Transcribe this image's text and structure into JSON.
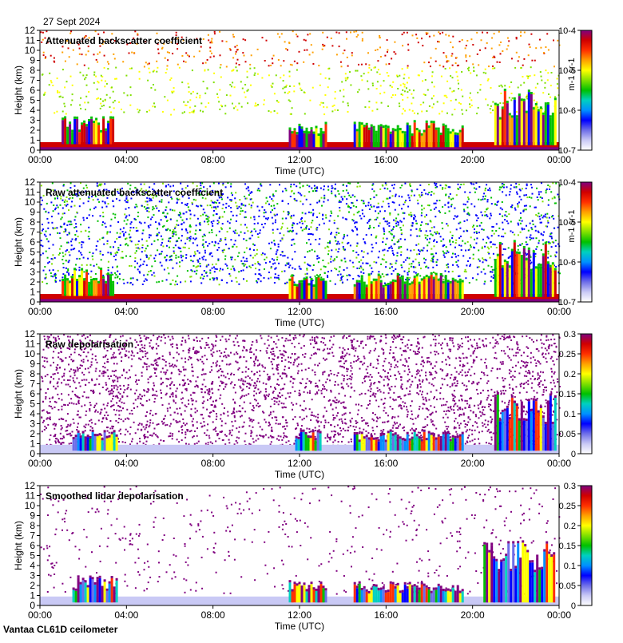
{
  "date_label": "27 Sept 2024",
  "station_label": "Vantaa CL61D ceilometer",
  "x_ticks": [
    "00:00",
    "04:00",
    "08:00",
    "12:00",
    "16:00",
    "20:00",
    "00:00"
  ],
  "y_ticks": [
    "0",
    "1",
    "2",
    "3",
    "4",
    "5",
    "6",
    "7",
    "8",
    "9",
    "10",
    "11",
    "12"
  ],
  "colors": {
    "ramp": [
      "#ffffff",
      "#c9c9f5",
      "#6e6ee8",
      "#0000ff",
      "#0090ff",
      "#00d0c0",
      "#00c000",
      "#80e000",
      "#ffff00",
      "#ffa000",
      "#ff3000",
      "#d00000",
      "#800080"
    ]
  },
  "chart_data": [
    {
      "type": "heatmap",
      "title": "Attenuated backscatter coefficient",
      "xlabel": "Time (UTC)",
      "ylabel": "Height (km)",
      "xlim": [
        0,
        24
      ],
      "ylim": [
        0,
        12
      ],
      "colorbar": {
        "scale": "log",
        "ticks": [
          "10-4",
          "10-5",
          "10-6",
          "10-7"
        ],
        "label": "m-1 sr-1"
      },
      "features": [
        {
          "t0": 1.0,
          "t1": 3.4,
          "h0": 0.6,
          "h1": 3.2,
          "kind": "cloud"
        },
        {
          "t0": 11.5,
          "t1": 13.2,
          "h0": 0.3,
          "h1": 2.6,
          "kind": "cloud"
        },
        {
          "t0": 14.5,
          "t1": 19.5,
          "h0": 0.3,
          "h1": 2.8,
          "kind": "cloud"
        },
        {
          "t0": 21.0,
          "t1": 23.8,
          "h0": 0.5,
          "h1": 6.0,
          "kind": "cloud"
        }
      ]
    },
    {
      "type": "heatmap",
      "title": "Raw attenuated backscatter coefficient",
      "xlabel": "Time (UTC)",
      "ylabel": "Height (km)",
      "xlim": [
        0,
        24
      ],
      "ylim": [
        0,
        12
      ],
      "colorbar": {
        "scale": "log",
        "ticks": [
          "10-4",
          "10-5",
          "10-6",
          "10-7"
        ],
        "label": "m-1 sr-1"
      },
      "features": [
        {
          "t0": 1.0,
          "t1": 3.4,
          "h0": 0.6,
          "h1": 3.2,
          "kind": "cloud"
        },
        {
          "t0": 11.5,
          "t1": 13.2,
          "h0": 0.3,
          "h1": 2.6,
          "kind": "cloud"
        },
        {
          "t0": 14.5,
          "t1": 19.5,
          "h0": 0.3,
          "h1": 2.8,
          "kind": "cloud"
        },
        {
          "t0": 21.0,
          "t1": 23.8,
          "h0": 0.5,
          "h1": 6.0,
          "kind": "cloud"
        }
      ]
    },
    {
      "type": "heatmap",
      "title": "Raw depolarisation",
      "xlabel": "Time (UTC)",
      "ylabel": "Height (km)",
      "xlim": [
        0,
        24
      ],
      "ylim": [
        0,
        12
      ],
      "colorbar": {
        "scale": "linear",
        "ticks": [
          "0.3",
          "0.25",
          "0.2",
          "0.15",
          "0.1",
          "0.05",
          "0"
        ],
        "label": ""
      },
      "features": [
        {
          "t0": 1.5,
          "t1": 3.5,
          "h0": 0.3,
          "h1": 2.2,
          "kind": "depol"
        },
        {
          "t0": 11.8,
          "t1": 13.0,
          "h0": 0.3,
          "h1": 2.2,
          "kind": "depol"
        },
        {
          "t0": 14.5,
          "t1": 19.5,
          "h0": 0.3,
          "h1": 2.2,
          "kind": "depol"
        },
        {
          "t0": 21.0,
          "t1": 23.8,
          "h0": 0.3,
          "h1": 6.0,
          "kind": "depol"
        }
      ]
    },
    {
      "type": "heatmap",
      "title": "Smoothed lidar depolarisation",
      "xlabel": "Time (UTC)",
      "ylabel": "Height (km)",
      "xlim": [
        0,
        24
      ],
      "ylim": [
        0,
        12
      ],
      "colorbar": {
        "scale": "linear",
        "ticks": [
          "0.3",
          "0.25",
          "0.2",
          "0.15",
          "0.1",
          "0.05",
          "0"
        ],
        "label": ""
      },
      "features": [
        {
          "t0": 1.5,
          "t1": 3.5,
          "h0": 0.3,
          "h1": 2.8,
          "kind": "depol"
        },
        {
          "t0": 11.5,
          "t1": 13.2,
          "h0": 0.3,
          "h1": 2.4,
          "kind": "depol"
        },
        {
          "t0": 14.5,
          "t1": 19.5,
          "h0": 0.3,
          "h1": 2.2,
          "kind": "depol"
        },
        {
          "t0": 20.5,
          "t1": 23.8,
          "h0": 0.3,
          "h1": 6.5,
          "kind": "depol"
        }
      ]
    }
  ]
}
